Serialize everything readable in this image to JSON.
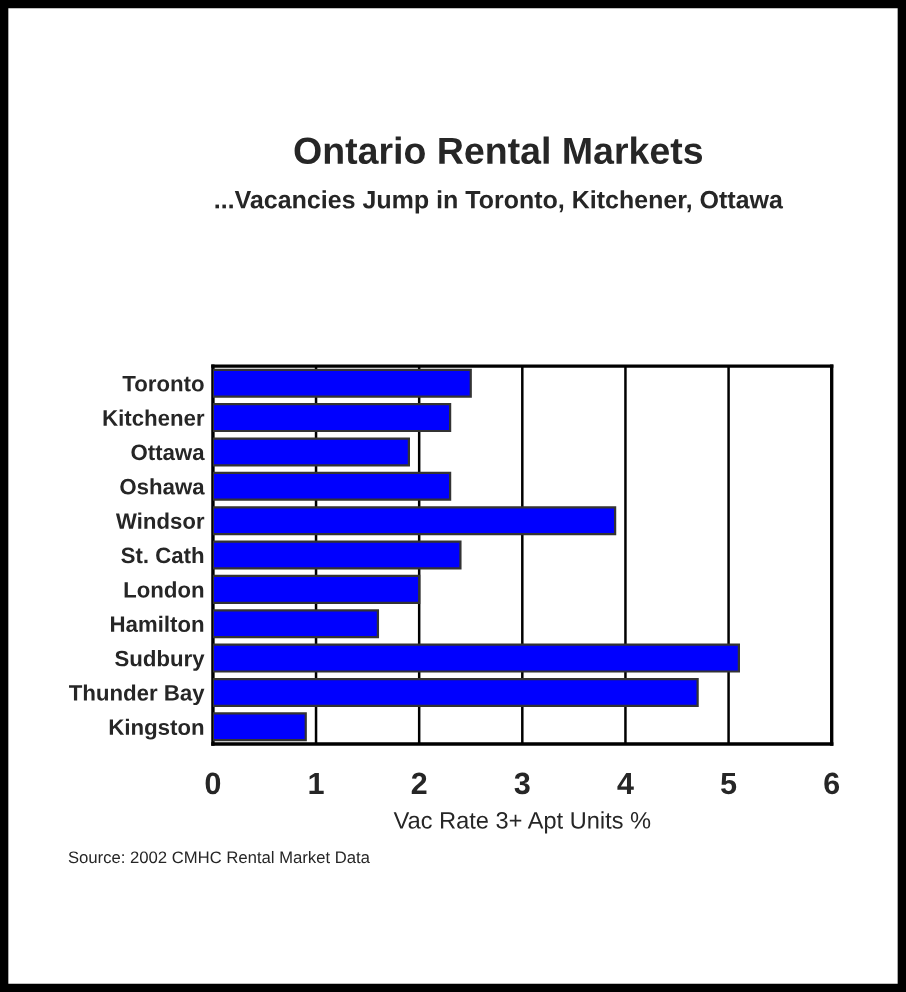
{
  "chart_data": {
    "type": "bar",
    "orientation": "horizontal",
    "title": "Ontario Rental Markets",
    "subtitle": "...Vacancies Jump in Toronto, Kitchener, Ottawa",
    "categories": [
      "Toronto",
      "Kitchener",
      "Ottawa",
      "Oshawa",
      "Windsor",
      "St. Cath",
      "London",
      "Hamilton",
      "Sudbury",
      "Thunder Bay",
      "Kingston"
    ],
    "values": [
      2.5,
      2.3,
      1.9,
      2.3,
      3.9,
      2.4,
      2.0,
      1.6,
      5.1,
      4.7,
      0.9
    ],
    "color": "#0000ff",
    "xlabel": "Vac Rate 3+ Apt Units %",
    "xlim": [
      0,
      6
    ],
    "xticks": [
      0,
      1,
      2,
      3,
      4,
      5,
      6
    ],
    "grid": "x",
    "annotations": [
      "Source: 2002 CMHC Rental Market Data"
    ]
  }
}
